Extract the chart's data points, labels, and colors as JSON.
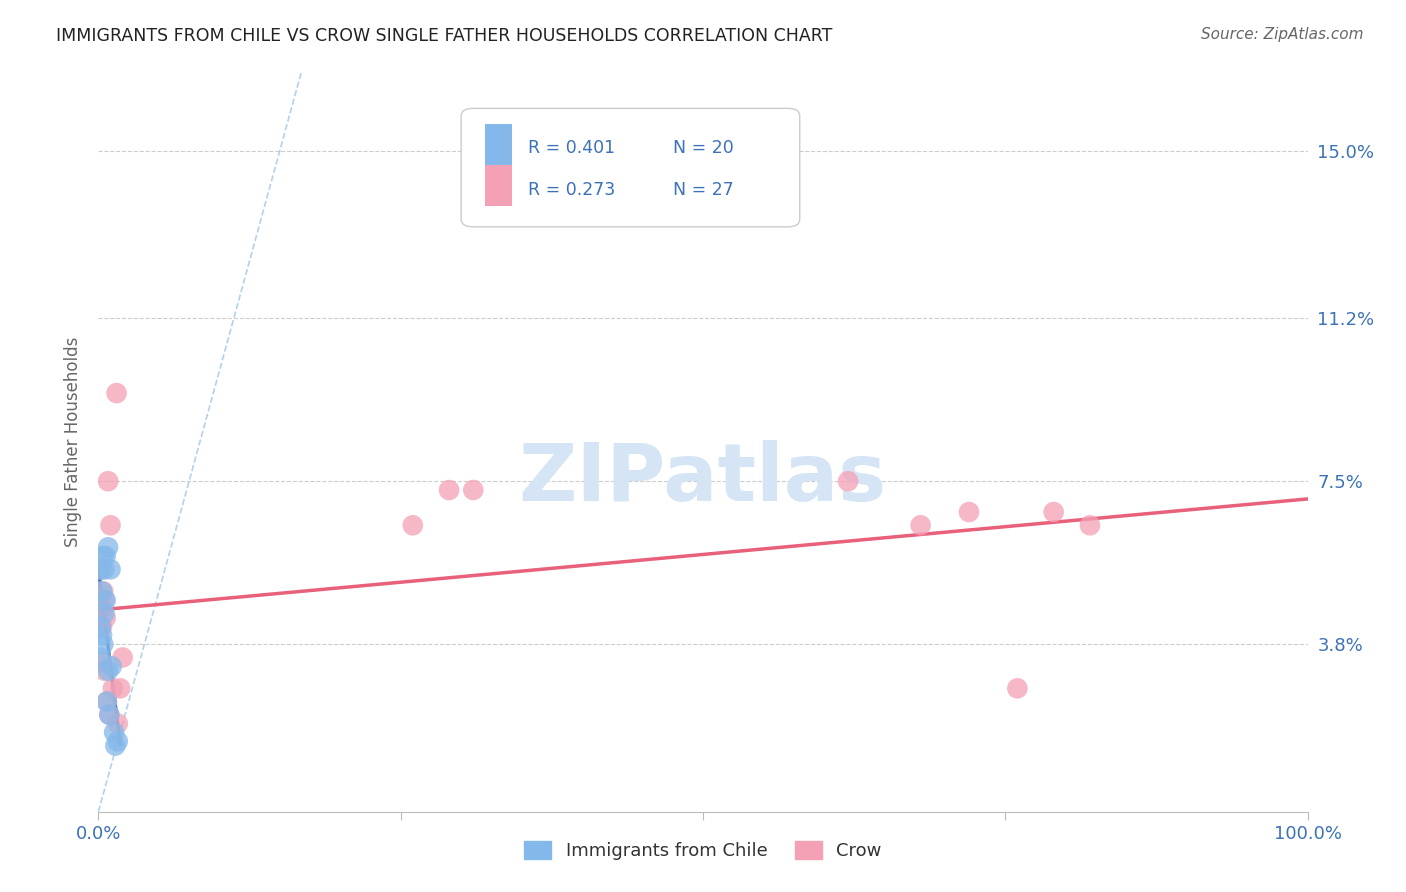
{
  "title": "IMMIGRANTS FROM CHILE VS CROW SINGLE FATHER HOUSEHOLDS CORRELATION CHART",
  "source": "Source: ZipAtlas.com",
  "ylabel": "Single Father Households",
  "xlim": [
    0,
    1.0
  ],
  "ylim": [
    0,
    0.168
  ],
  "ytick_positions": [
    0.0,
    0.038,
    0.075,
    0.112,
    0.15
  ],
  "ytick_labels": [
    "",
    "3.8%",
    "7.5%",
    "11.2%",
    "15.0%"
  ],
  "xtick_positions": [
    0.0,
    0.25,
    0.5,
    0.75,
    1.0
  ],
  "xtick_labels": [
    "0.0%",
    "",
    "",
    "",
    "100.0%"
  ],
  "legend_r1": "R = 0.401",
  "legend_n1": "N = 20",
  "legend_r2": "R = 0.273",
  "legend_n2": "N = 27",
  "legend_label1": "Immigrants from Chile",
  "legend_label2": "Crow",
  "color_blue": "#85B8EA",
  "color_pink": "#F4A0B5",
  "color_blue_line": "#3B72B8",
  "color_pink_line": "#E8607A",
  "color_dashed": "#AACCE8",
  "watermark_color": "#D5E5F5",
  "blue_points_x": [
    0.001,
    0.002,
    0.002,
    0.003,
    0.003,
    0.004,
    0.004,
    0.005,
    0.005,
    0.006,
    0.006,
    0.007,
    0.008,
    0.008,
    0.009,
    0.01,
    0.011,
    0.013,
    0.014,
    0.016
  ],
  "blue_points_y": [
    0.055,
    0.042,
    0.035,
    0.05,
    0.04,
    0.058,
    0.038,
    0.045,
    0.055,
    0.058,
    0.048,
    0.025,
    0.06,
    0.032,
    0.022,
    0.055,
    0.033,
    0.018,
    0.015,
    0.016
  ],
  "pink_points_x": [
    0.001,
    0.002,
    0.002,
    0.003,
    0.003,
    0.004,
    0.005,
    0.005,
    0.006,
    0.007,
    0.008,
    0.009,
    0.01,
    0.012,
    0.015,
    0.016,
    0.018,
    0.02,
    0.26,
    0.29,
    0.31,
    0.62,
    0.68,
    0.72,
    0.76,
    0.79,
    0.82
  ],
  "pink_points_y": [
    0.048,
    0.046,
    0.034,
    0.055,
    0.042,
    0.05,
    0.032,
    0.048,
    0.044,
    0.025,
    0.075,
    0.022,
    0.065,
    0.028,
    0.095,
    0.02,
    0.028,
    0.035,
    0.065,
    0.073,
    0.073,
    0.075,
    0.065,
    0.068,
    0.028,
    0.068,
    0.065
  ],
  "pink_trendline_x": [
    0.0,
    1.0
  ],
  "pink_trendline_y": [
    0.043,
    0.065
  ]
}
